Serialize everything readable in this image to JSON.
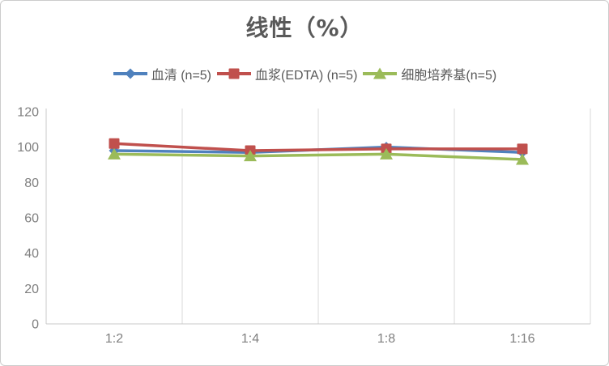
{
  "window": {
    "background": "#ffffff",
    "border_color": "#cccccc"
  },
  "chart_data": {
    "type": "line",
    "title": "线性（%）",
    "title_color": "#595959",
    "categories": [
      "1:2",
      "1:4",
      "1:8",
      "1:16"
    ],
    "series": [
      {
        "name": "血清 (n=5)",
        "marker": "diamond",
        "color": "#4f81bd",
        "values": [
          98,
          97,
          100,
          97
        ]
      },
      {
        "name": "血浆(EDTA) (n=5)",
        "marker": "square",
        "color": "#c0504d",
        "values": [
          102,
          98,
          99,
          99
        ]
      },
      {
        "name": "细胞培养基(n=5)",
        "marker": "triangle",
        "color": "#9bbb59",
        "values": [
          96,
          95,
          96,
          93
        ]
      }
    ],
    "xlabel": "",
    "ylabel": "",
    "ylim": [
      0,
      120
    ],
    "yticks": [
      0,
      20,
      40,
      60,
      80,
      100,
      120
    ],
    "legend_position": "top",
    "grid": "vertical",
    "gridline_color": "#d9d9d9",
    "axis_line_color": "#c9c9c9",
    "tick_label_color": "#7f7f7f",
    "legend_text_color": "#595959"
  }
}
